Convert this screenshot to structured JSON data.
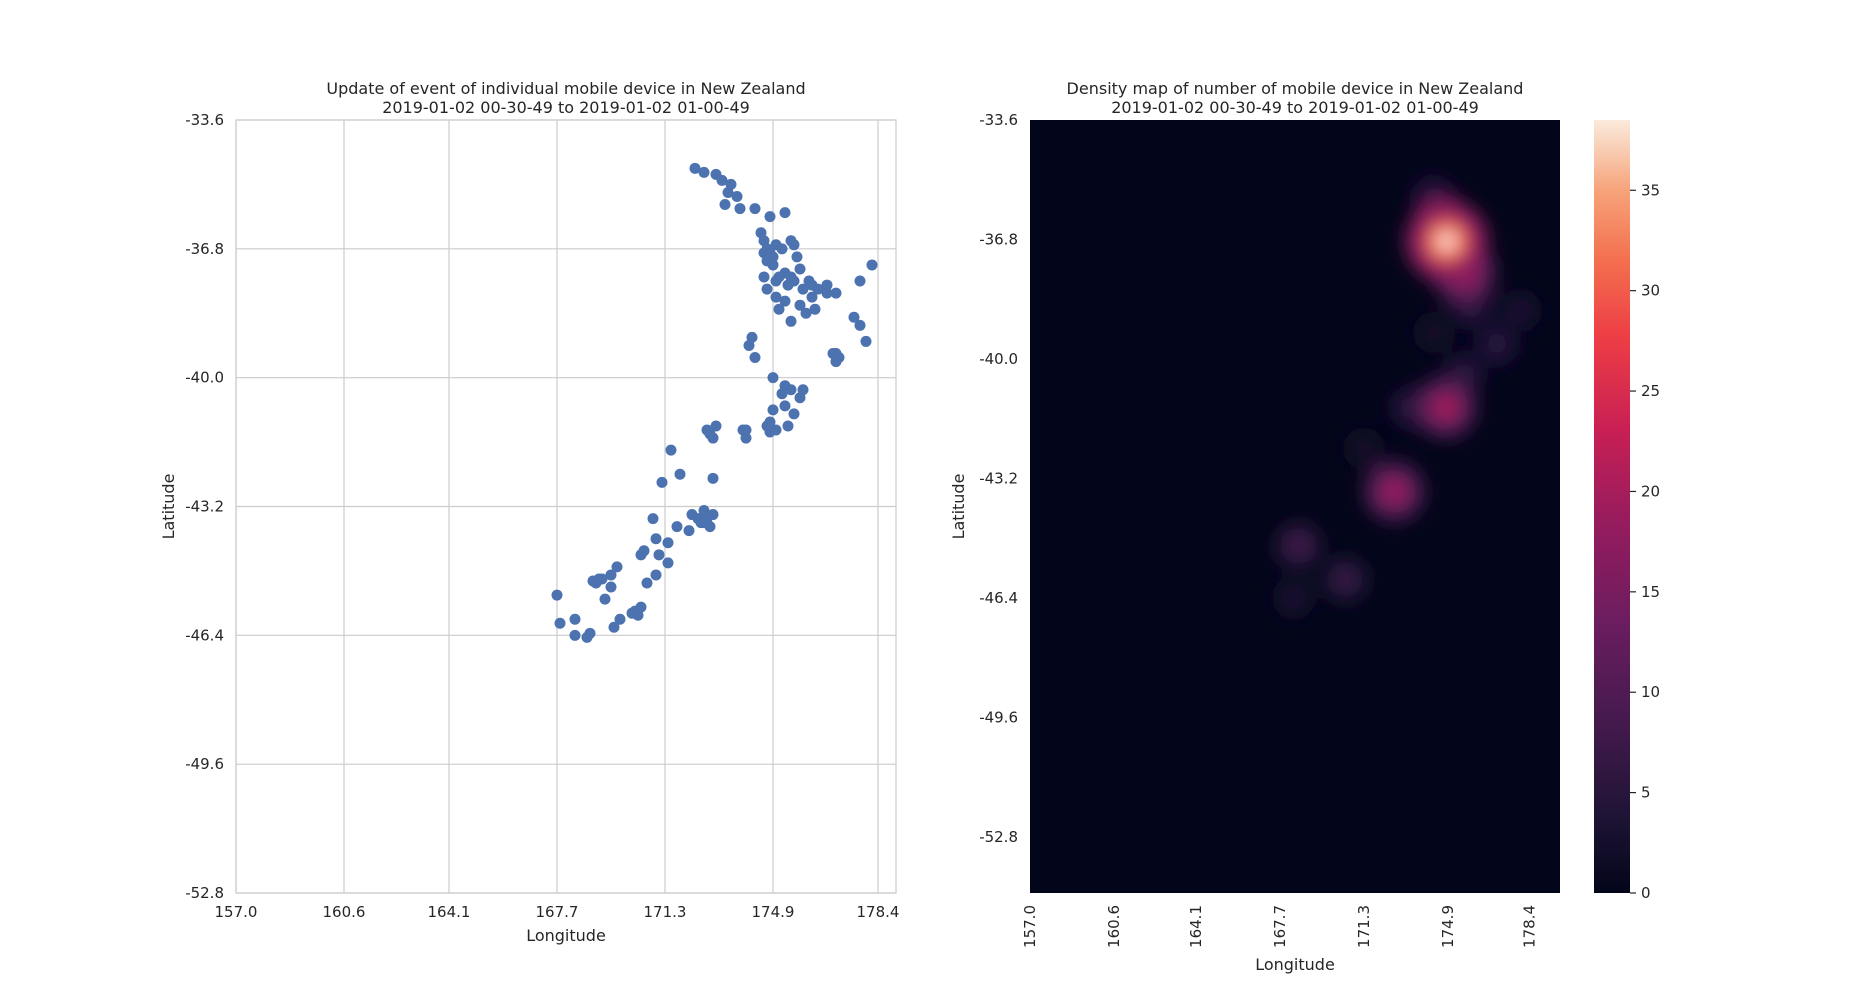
{
  "chart_data": [
    {
      "type": "scatter",
      "title": "Update of event of individual mobile device in New Zealand\n2019-01-02 00-30-49 to 2019-01-02 01-00-49",
      "xlabel": "Longitude",
      "ylabel": "Latitude",
      "xlim": [
        157.0,
        179.0
      ],
      "ylim": [
        -52.8,
        -33.6
      ],
      "xticks": [
        "157.0",
        "160.6",
        "164.1",
        "167.7",
        "171.3",
        "174.9",
        "178.4"
      ],
      "yticks": [
        "-33.6",
        "-36.8",
        "-40.0",
        "-43.2",
        "-46.4",
        "-49.6",
        "-52.8"
      ],
      "grid": true,
      "color": "#4c72b0",
      "points": [
        [
          172.3,
          -34.8
        ],
        [
          172.6,
          -34.9
        ],
        [
          173.0,
          -34.95
        ],
        [
          173.2,
          -35.1
        ],
        [
          173.5,
          -35.2
        ],
        [
          173.4,
          -35.4
        ],
        [
          173.7,
          -35.5
        ],
        [
          173.3,
          -35.7
        ],
        [
          173.8,
          -35.8
        ],
        [
          174.3,
          -35.8
        ],
        [
          174.8,
          -36.0
        ],
        [
          175.3,
          -35.9
        ],
        [
          174.5,
          -36.4
        ],
        [
          174.6,
          -36.6
        ],
        [
          174.7,
          -36.8
        ],
        [
          174.8,
          -36.9
        ],
        [
          174.9,
          -37.0
        ],
        [
          174.7,
          -37.1
        ],
        [
          175.0,
          -36.7
        ],
        [
          174.6,
          -36.9
        ],
        [
          175.2,
          -36.8
        ],
        [
          175.5,
          -36.6
        ],
        [
          175.6,
          -36.7
        ],
        [
          175.7,
          -37.0
        ],
        [
          175.8,
          -37.3
        ],
        [
          175.5,
          -37.5
        ],
        [
          175.3,
          -37.4
        ],
        [
          175.1,
          -37.5
        ],
        [
          174.9,
          -37.2
        ],
        [
          175.0,
          -37.6
        ],
        [
          175.4,
          -37.7
        ],
        [
          175.6,
          -37.6
        ],
        [
          176.1,
          -37.6
        ],
        [
          176.2,
          -37.7
        ],
        [
          175.9,
          -37.8
        ],
        [
          176.4,
          -37.8
        ],
        [
          176.7,
          -37.9
        ],
        [
          177.0,
          -37.9
        ],
        [
          176.2,
          -38.0
        ],
        [
          175.8,
          -38.2
        ],
        [
          176.0,
          -38.4
        ],
        [
          175.3,
          -38.1
        ],
        [
          175.1,
          -38.3
        ],
        [
          175.5,
          -38.6
        ],
        [
          174.6,
          -37.5
        ],
        [
          174.7,
          -37.8
        ],
        [
          175.0,
          -38.0
        ],
        [
          176.7,
          -37.7
        ],
        [
          177.8,
          -37.6
        ],
        [
          178.2,
          -37.2
        ],
        [
          176.3,
          -38.3
        ],
        [
          177.6,
          -38.5
        ],
        [
          177.8,
          -38.7
        ],
        [
          178.0,
          -39.1
        ],
        [
          177.0,
          -39.4
        ],
        [
          177.1,
          -39.5
        ],
        [
          177.0,
          -39.6
        ],
        [
          176.9,
          -39.4
        ],
        [
          174.2,
          -39.0
        ],
        [
          174.1,
          -39.2
        ],
        [
          174.3,
          -39.5
        ],
        [
          174.9,
          -40.0
        ],
        [
          175.3,
          -40.2
        ],
        [
          175.5,
          -40.3
        ],
        [
          175.2,
          -40.4
        ],
        [
          175.9,
          -40.3
        ],
        [
          175.8,
          -40.5
        ],
        [
          175.6,
          -40.9
        ],
        [
          175.3,
          -40.7
        ],
        [
          174.9,
          -40.8
        ],
        [
          174.8,
          -41.1
        ],
        [
          175.0,
          -41.3
        ],
        [
          174.8,
          -41.35
        ],
        [
          174.7,
          -41.2
        ],
        [
          175.4,
          -41.2
        ],
        [
          174.0,
          -41.3
        ],
        [
          174.0,
          -41.5
        ],
        [
          173.9,
          -41.3
        ],
        [
          173.0,
          -41.2
        ],
        [
          172.8,
          -41.4
        ],
        [
          172.7,
          -41.3
        ],
        [
          172.9,
          -41.5
        ],
        [
          171.5,
          -41.8
        ],
        [
          171.8,
          -42.4
        ],
        [
          172.9,
          -42.5
        ],
        [
          171.2,
          -42.6
        ],
        [
          170.9,
          -43.5
        ],
        [
          171.7,
          -43.7
        ],
        [
          172.2,
          -43.4
        ],
        [
          172.4,
          -43.5
        ],
        [
          172.6,
          -43.6
        ],
        [
          172.7,
          -43.5
        ],
        [
          172.8,
          -43.7
        ],
        [
          172.5,
          -43.6
        ],
        [
          172.6,
          -43.3
        ],
        [
          172.9,
          -43.4
        ],
        [
          172.1,
          -43.8
        ],
        [
          171.0,
          -44.0
        ],
        [
          170.6,
          -44.3
        ],
        [
          171.4,
          -44.1
        ],
        [
          170.5,
          -44.4
        ],
        [
          171.1,
          -44.4
        ],
        [
          171.4,
          -44.6
        ],
        [
          169.7,
          -44.7
        ],
        [
          169.5,
          -44.9
        ],
        [
          169.1,
          -45.0
        ],
        [
          169.0,
          -45.1
        ],
        [
          168.9,
          -45.05
        ],
        [
          169.2,
          -45.0
        ],
        [
          169.5,
          -45.2
        ],
        [
          169.3,
          -45.5
        ],
        [
          171.0,
          -44.9
        ],
        [
          170.7,
          -45.1
        ],
        [
          170.5,
          -45.7
        ],
        [
          170.4,
          -45.9
        ],
        [
          170.2,
          -45.85
        ],
        [
          170.3,
          -45.8
        ],
        [
          169.8,
          -46.0
        ],
        [
          169.6,
          -46.2
        ],
        [
          168.3,
          -46.0
        ],
        [
          167.7,
          -45.4
        ],
        [
          167.8,
          -46.1
        ],
        [
          168.3,
          -46.4
        ],
        [
          168.8,
          -46.35
        ],
        [
          168.7,
          -46.45
        ]
      ]
    },
    {
      "type": "heatmap",
      "title": "Density map of number of mobile device in New Zealand\n2019-01-02 00-30-49 to 2019-01-02 01-00-49",
      "xlabel": "Longitude",
      "ylabel": "Latitude",
      "xlim": [
        157.0,
        179.7
      ],
      "ylim": [
        -54.3,
        -33.6
      ],
      "xticks": [
        "157.0",
        "160.6",
        "164.1",
        "167.7",
        "171.3",
        "174.9",
        "178.4"
      ],
      "yticks": [
        "-33.6",
        "-36.8",
        "-40.0",
        "-43.2",
        "-46.4",
        "-49.6",
        "-52.8"
      ],
      "colorbar": {
        "min": 0,
        "max": 38.5,
        "ticks": [
          "0",
          "5",
          "10",
          "15",
          "20",
          "25",
          "30",
          "35"
        ]
      },
      "hotspots": [
        {
          "lon": 174.85,
          "lat": -36.85,
          "value": 38
        },
        {
          "lon": 175.6,
          "lat": -37.7,
          "value": 22
        },
        {
          "lon": 174.8,
          "lat": -41.3,
          "value": 21
        },
        {
          "lon": 172.6,
          "lat": -43.55,
          "value": 20
        },
        {
          "lon": 174.3,
          "lat": -35.7,
          "value": 7
        },
        {
          "lon": 175.9,
          "lat": -38.6,
          "value": 6
        },
        {
          "lon": 177.0,
          "lat": -39.6,
          "value": 6
        },
        {
          "lon": 178.0,
          "lat": -38.7,
          "value": 4
        },
        {
          "lon": 175.6,
          "lat": -40.4,
          "value": 6
        },
        {
          "lon": 173.3,
          "lat": -41.3,
          "value": 6
        },
        {
          "lon": 170.5,
          "lat": -45.9,
          "value": 8
        },
        {
          "lon": 168.5,
          "lat": -45.0,
          "value": 9
        },
        {
          "lon": 168.3,
          "lat": -46.4,
          "value": 4
        },
        {
          "lon": 174.3,
          "lat": -39.3,
          "value": 3
        },
        {
          "lon": 171.3,
          "lat": -42.4,
          "value": 3
        }
      ]
    }
  ]
}
